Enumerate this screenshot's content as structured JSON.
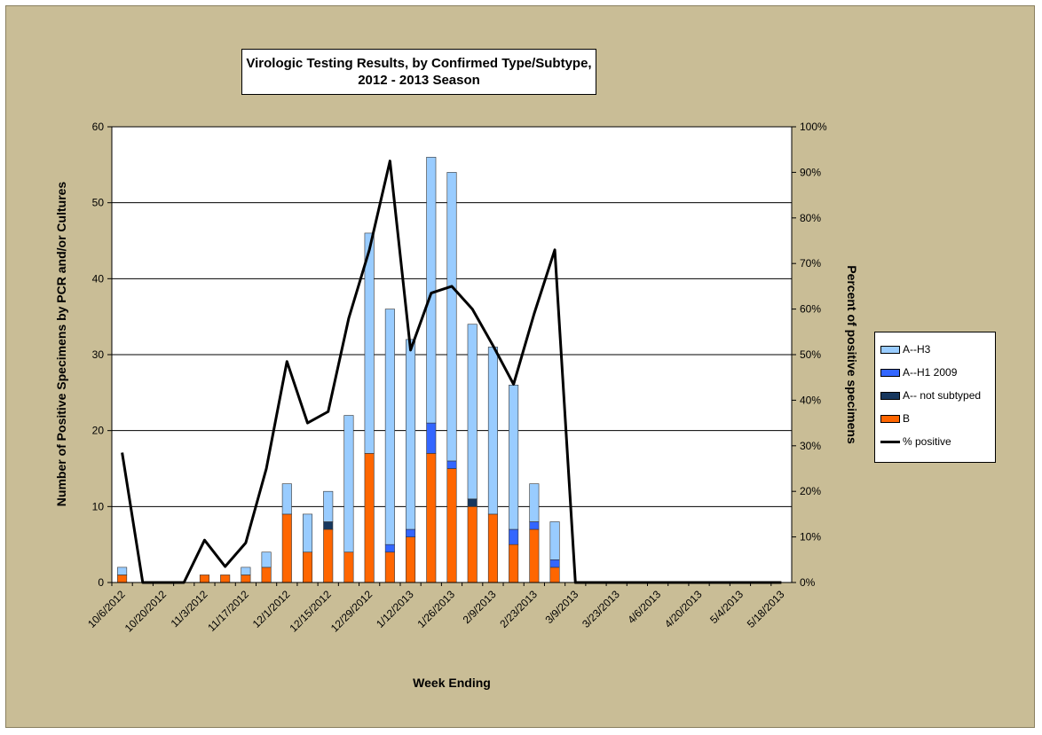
{
  "chart_data": {
    "type": "bar",
    "title": [
      "Virologic Testing Results, by Confirmed Type/Subtype,",
      "2012 - 2013 Season"
    ],
    "xlabel": "Week Ending",
    "ylabel": "Number of Positive Specimens by PCR and/or Cultures",
    "y2label": "Percent of positive specimens",
    "ylim": [
      0,
      60
    ],
    "y2lim": [
      0,
      100
    ],
    "yticks": [
      "0",
      "10",
      "20",
      "30",
      "40",
      "50",
      "60"
    ],
    "y2ticks": [
      "0%",
      "10%",
      "20%",
      "30%",
      "40%",
      "50%",
      "60%",
      "70%",
      "80%",
      "90%",
      "100%"
    ],
    "categories": [
      "10/6/2012",
      "10/13/2012",
      "10/20/2012",
      "10/27/2012",
      "11/3/2012",
      "11/10/2012",
      "11/17/2012",
      "11/24/2012",
      "12/1/2012",
      "12/8/2012",
      "12/15/2012",
      "12/22/2012",
      "12/29/2012",
      "1/5/2013",
      "1/12/2013",
      "1/19/2013",
      "1/26/2013",
      "2/2/2013",
      "2/9/2013",
      "2/16/2013",
      "2/23/2013",
      "3/2/2013",
      "3/9/2013",
      "3/16/2013",
      "3/23/2013",
      "3/30/2013",
      "4/6/2013",
      "4/13/2013",
      "4/20/2013",
      "4/27/2013",
      "5/4/2013",
      "5/11/2013",
      "5/18/2013"
    ],
    "shown_xticks": [
      "10/6/2012",
      "10/20/2012",
      "11/3/2012",
      "11/17/2012",
      "12/1/2012",
      "12/15/2012",
      "12/29/2012",
      "1/12/2013",
      "1/26/2013",
      "2/9/2013",
      "2/23/2013",
      "3/9/2013",
      "3/23/2013",
      "4/6/2013",
      "4/20/2013",
      "5/4/2013",
      "5/18/2013"
    ],
    "series": [
      {
        "name": "B",
        "color": "#ff6600",
        "values": [
          1,
          0,
          0,
          0,
          1,
          1,
          1,
          2,
          9,
          4,
          7,
          4,
          17,
          4,
          6,
          17,
          15,
          10,
          9,
          5,
          7,
          2,
          0,
          0,
          0,
          0,
          0,
          0,
          0,
          0,
          0,
          0,
          0
        ]
      },
      {
        "name": "A-- not subtyped",
        "color": "#17375e",
        "values": [
          0,
          0,
          0,
          0,
          0,
          0,
          0,
          0,
          0,
          0,
          1,
          0,
          0,
          0,
          0,
          0,
          0,
          1,
          0,
          0,
          0,
          0,
          0,
          0,
          0,
          0,
          0,
          0,
          0,
          0,
          0,
          0,
          0
        ]
      },
      {
        "name": "A--H1 2009",
        "color": "#3366ff",
        "values": [
          0,
          0,
          0,
          0,
          0,
          0,
          0,
          0,
          0,
          0,
          0,
          0,
          0,
          1,
          1,
          4,
          1,
          0,
          0,
          2,
          1,
          1,
          0,
          0,
          0,
          0,
          0,
          0,
          0,
          0,
          0,
          0,
          0
        ]
      },
      {
        "name": "A--H3",
        "color": "#99ccff",
        "values": [
          1,
          0,
          0,
          0,
          0,
          0,
          1,
          2,
          4,
          5,
          4,
          18,
          29,
          31,
          25,
          35,
          38,
          23,
          22,
          19,
          5,
          5,
          0,
          0,
          0,
          0,
          0,
          0,
          0,
          0,
          0,
          0,
          0
        ]
      }
    ],
    "line": {
      "name": "% positive",
      "color": "#000000",
      "values": [
        28.5,
        0,
        0,
        0,
        9.3,
        3.5,
        8.7,
        25,
        48.5,
        35,
        37.5,
        58,
        73,
        92.5,
        51,
        63.5,
        65,
        60,
        52,
        43.5,
        59,
        73,
        0,
        0,
        0,
        0,
        0,
        0,
        0,
        0,
        0,
        0,
        0
      ]
    },
    "legend": {
      "position": "right",
      "items": [
        {
          "label": "A--H3",
          "color": "#99ccff",
          "kind": "box"
        },
        {
          "label": "A--H1 2009",
          "color": "#3366ff",
          "kind": "box"
        },
        {
          "label": "A-- not subtyped",
          "color": "#17375e",
          "kind": "box"
        },
        {
          "label": "B",
          "color": "#ff6600",
          "kind": "box"
        },
        {
          "label": "% positive",
          "color": "#000000",
          "kind": "line"
        }
      ]
    },
    "grid": true
  },
  "colors": {
    "background": "#c9bd96",
    "plot": "#ffffff"
  }
}
